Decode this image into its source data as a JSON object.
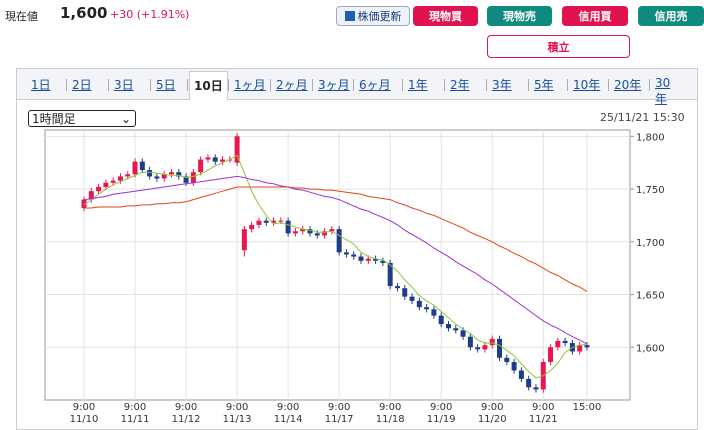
{
  "header": {
    "label": "現在値",
    "price": "1,600",
    "change": "+30 (+1.91%)"
  },
  "buttons": [
    "株価更新",
    "現物買",
    "現物売",
    "信用買",
    "信用売",
    "積立"
  ],
  "tabs": [
    "1日",
    "2日",
    "3日",
    "5日",
    "10日",
    "1ヶ月",
    "2ヶ月",
    "3ヶ月",
    "6ヶ月",
    "1年",
    "2年",
    "3年",
    "5年",
    "10年",
    "20年",
    "30年"
  ],
  "selected_tab": "10日",
  "interval": "1時間足",
  "timestamp": "25/11/21 15:30",
  "chart_data": {
    "type": "candlestick",
    "categories": [
      "9:00 11/10",
      null,
      null,
      null,
      null,
      null,
      null,
      "9:00 11/11",
      null,
      null,
      null,
      null,
      null,
      null,
      "9:00 11/12",
      null,
      null,
      null,
      null,
      null,
      null,
      "9:00 11/13",
      null,
      null,
      null,
      null,
      null,
      null,
      "9:00 11/14",
      null,
      null,
      null,
      null,
      null,
      null,
      "9:00 11/17",
      null,
      null,
      null,
      null,
      null,
      null,
      "9:00 11/18",
      null,
      null,
      null,
      null,
      null,
      null,
      "9:00 11/19",
      null,
      null,
      null,
      null,
      null,
      null,
      "9:00 11/20",
      null,
      null,
      null,
      null,
      null,
      null,
      "9:00 11/21",
      null,
      null,
      null,
      null,
      null,
      "15:00"
    ],
    "open": [
      1732,
      1740,
      1748,
      1752,
      1756,
      1758,
      1762,
      1764,
      1776,
      1768,
      1762,
      1760,
      1764,
      1766,
      1762,
      1756,
      1766,
      1778,
      1780,
      1776,
      1778,
      1775,
      1692,
      1712,
      1716,
      1720,
      1718,
      1720,
      1720,
      1708,
      1710,
      1712,
      1708,
      1706,
      1710,
      1712,
      1690,
      1688,
      1686,
      1682,
      1684,
      1682,
      1680,
      1658,
      1656,
      1648,
      1644,
      1638,
      1636,
      1630,
      1622,
      1618,
      1616,
      1610,
      1600,
      1598,
      1602,
      1608,
      1590,
      1586,
      1578,
      1570,
      1562,
      1560,
      1586,
      1600,
      1606,
      1604,
      1596,
      1602
    ],
    "high": [
      1743,
      1751,
      1755,
      1759,
      1761,
      1765,
      1767,
      1779,
      1779,
      1771,
      1765,
      1767,
      1769,
      1769,
      1765,
      1769,
      1781,
      1783,
      1783,
      1781,
      1781,
      1803,
      1715,
      1719,
      1723,
      1723,
      1723,
      1723,
      1723,
      1713,
      1715,
      1715,
      1711,
      1713,
      1715,
      1715,
      1693,
      1691,
      1689,
      1687,
      1687,
      1685,
      1683,
      1661,
      1659,
      1651,
      1647,
      1641,
      1639,
      1633,
      1625,
      1621,
      1619,
      1613,
      1603,
      1605,
      1611,
      1611,
      1593,
      1589,
      1581,
      1573,
      1565,
      1589,
      1603,
      1609,
      1609,
      1607,
      1605,
      1605
    ],
    "low": [
      1729,
      1737,
      1745,
      1749,
      1753,
      1755,
      1759,
      1761,
      1765,
      1759,
      1757,
      1757,
      1761,
      1759,
      1753,
      1753,
      1763,
      1775,
      1773,
      1773,
      1775,
      1772,
      1686,
      1709,
      1713,
      1715,
      1715,
      1717,
      1705,
      1705,
      1707,
      1705,
      1703,
      1703,
      1707,
      1687,
      1685,
      1683,
      1679,
      1679,
      1679,
      1677,
      1655,
      1653,
      1645,
      1641,
      1635,
      1633,
      1627,
      1619,
      1615,
      1613,
      1607,
      1597,
      1595,
      1595,
      1599,
      1587,
      1583,
      1575,
      1567,
      1559,
      1557,
      1557,
      1583,
      1597,
      1601,
      1593,
      1593,
      1597
    ],
    "close": [
      1740,
      1748,
      1752,
      1756,
      1758,
      1762,
      1764,
      1776,
      1768,
      1762,
      1760,
      1764,
      1766,
      1762,
      1756,
      1766,
      1778,
      1780,
      1776,
      1778,
      1778,
      1800,
      1712,
      1716,
      1720,
      1718,
      1720,
      1720,
      1708,
      1710,
      1712,
      1708,
      1706,
      1710,
      1712,
      1690,
      1688,
      1686,
      1682,
      1684,
      1682,
      1680,
      1658,
      1656,
      1648,
      1644,
      1638,
      1636,
      1630,
      1622,
      1618,
      1616,
      1610,
      1600,
      1598,
      1602,
      1608,
      1590,
      1586,
      1578,
      1570,
      1562,
      1560,
      1586,
      1600,
      1606,
      1604,
      1596,
      1602,
      1600
    ],
    "up_color": "#e8174f",
    "down_color": "#1f3c88",
    "series": [
      {
        "color": "#8cc63f",
        "values": [
          1735,
          1740,
          1745,
          1750,
          1754,
          1757,
          1760,
          1763,
          1766,
          1766,
          1765,
          1764,
          1763,
          1763,
          1761,
          1762,
          1764,
          1768,
          1772,
          1775,
          1778,
          1782,
          1765,
          1748,
          1735,
          1725,
          1717,
          1718,
          1716,
          1714,
          1712,
          1711,
          1709,
          1709,
          1710,
          1706,
          1702,
          1698,
          1690,
          1686,
          1684,
          1683,
          1678,
          1672,
          1664,
          1657,
          1649,
          1644,
          1640,
          1634,
          1628,
          1622,
          1617,
          1613,
          1607,
          1604,
          1604,
          1602,
          1597,
          1592,
          1584,
          1577,
          1571,
          1573,
          1578,
          1585,
          1595,
          1600,
          1602,
          1603
        ]
      },
      {
        "color": "#9b30d9",
        "values": [
          1740,
          1741,
          1742,
          1743,
          1745,
          1746,
          1747,
          1748,
          1749,
          1750,
          1751,
          1752,
          1753,
          1754,
          1755,
          1756,
          1757,
          1758,
          1759,
          1760,
          1761,
          1762,
          1761,
          1759,
          1758,
          1756,
          1755,
          1753,
          1752,
          1750,
          1749,
          1747,
          1745,
          1743,
          1742,
          1740,
          1737,
          1734,
          1731,
          1729,
          1726,
          1723,
          1720,
          1716,
          1711,
          1707,
          1703,
          1699,
          1694,
          1690,
          1686,
          1681,
          1677,
          1673,
          1669,
          1664,
          1660,
          1655,
          1650,
          1645,
          1640,
          1635,
          1630,
          1625,
          1621,
          1618,
          1614,
          1610,
          1607,
          1603
        ]
      },
      {
        "color": "#e0461c",
        "values": [
          1732,
          1732,
          1733,
          1733,
          1733,
          1733,
          1734,
          1734,
          1735,
          1735,
          1736,
          1736,
          1737,
          1737,
          1738,
          1740,
          1742,
          1744,
          1746,
          1748,
          1750,
          1752,
          1752,
          1752,
          1752,
          1752,
          1752,
          1752,
          1752,
          1751,
          1751,
          1750,
          1750,
          1749,
          1749,
          1748,
          1747,
          1746,
          1745,
          1743,
          1742,
          1741,
          1740,
          1737,
          1735,
          1732,
          1730,
          1727,
          1725,
          1722,
          1719,
          1716,
          1713,
          1709,
          1706,
          1703,
          1700,
          1696,
          1693,
          1689,
          1686,
          1682,
          1679,
          1675,
          1671,
          1668,
          1664,
          1660,
          1657,
          1653
        ]
      }
    ],
    "ylim": [
      1550,
      1806
    ],
    "yticks": [
      {
        "value": 1600,
        "label": "1,600"
      },
      {
        "value": 1650,
        "label": "1,650"
      },
      {
        "value": 1700,
        "label": "1,700"
      },
      {
        "value": 1750,
        "label": "1,750"
      },
      {
        "value": 1800,
        "label": "1,800"
      }
    ],
    "grid": true
  }
}
